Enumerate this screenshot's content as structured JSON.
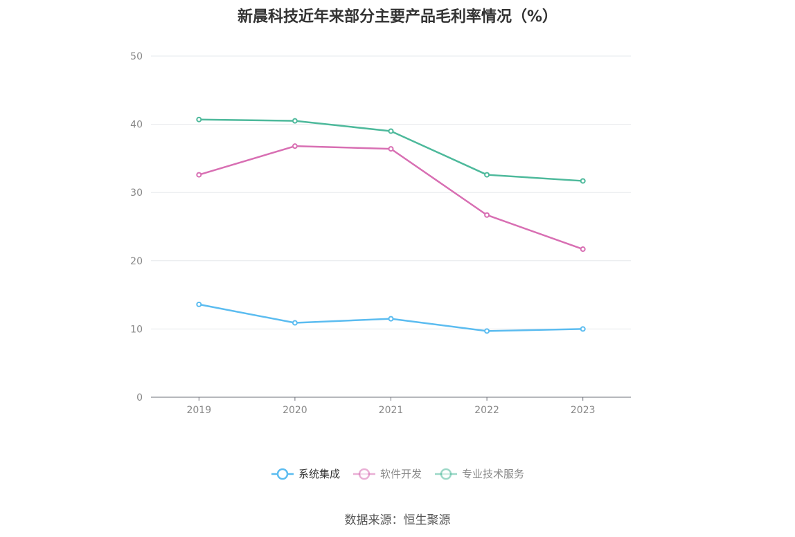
{
  "chart_data": {
    "type": "line",
    "title": "新晨科技近年来部分主要产品毛利率情况（%）",
    "categories": [
      "2019",
      "2020",
      "2021",
      "2022",
      "2023"
    ],
    "ylim": [
      0,
      50
    ],
    "yticks": [
      0,
      10,
      20,
      30,
      40,
      50
    ],
    "grid": true,
    "legend_position": "bottom",
    "series": [
      {
        "name": "系统集成",
        "color": "#5bbcf0",
        "values": [
          13.6,
          10.9,
          11.5,
          9.7,
          10.0
        ]
      },
      {
        "name": "软件开发",
        "color": "#d86fb3",
        "values": [
          32.6,
          36.8,
          36.4,
          26.7,
          21.7
        ]
      },
      {
        "name": "专业技术服务",
        "color": "#4db99b",
        "values": [
          40.7,
          40.5,
          39.0,
          32.6,
          31.7
        ]
      }
    ]
  },
  "source": "数据来源：恒生聚源"
}
